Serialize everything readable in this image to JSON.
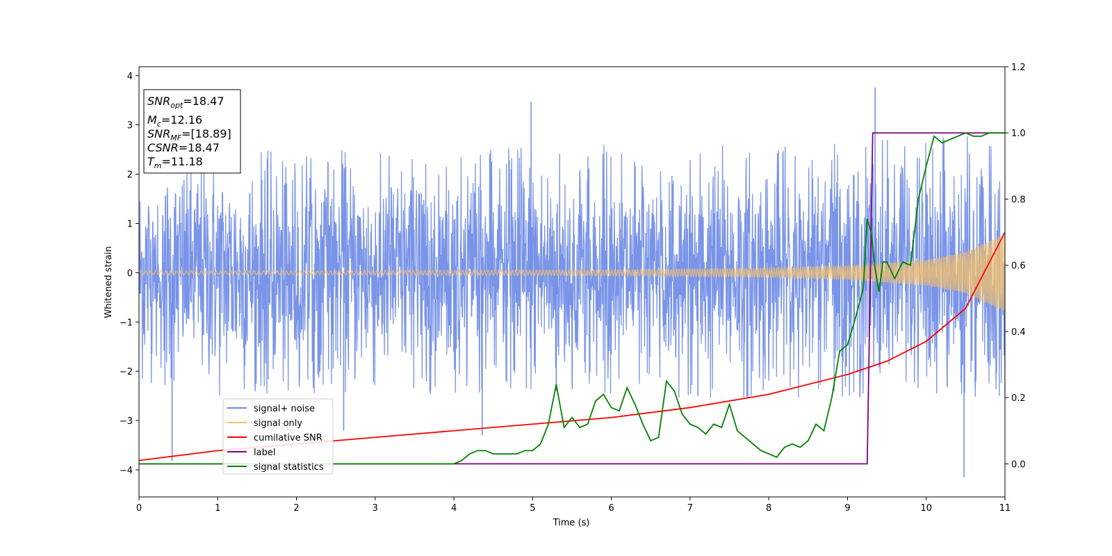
{
  "chart_data": {
    "type": "line",
    "xlabel": "Time (s)",
    "ylabel": "Whitened strain",
    "xlim": [
      0,
      11
    ],
    "ylim": [
      -4.55,
      4.18
    ],
    "y2lim": [
      -0.1,
      1.2
    ],
    "x_ticks": [
      "0",
      "1",
      "2",
      "3",
      "4",
      "5",
      "6",
      "7",
      "8",
      "9",
      "10",
      "11"
    ],
    "y_ticks": [
      "−4",
      "−3",
      "−2",
      "−1",
      "0",
      "1",
      "2",
      "3",
      "4"
    ],
    "y2_ticks": [
      "0.0",
      "0.2",
      "0.4",
      "0.6",
      "0.8",
      "1.0",
      "1.2"
    ],
    "legend_placement": "lower-left",
    "info_box": {
      "snr_opt_sym": "SNR",
      "snr_opt_sub": "opt",
      "snr_opt_val": "=18.47",
      "mc_sym": "M",
      "mc_sub": "c",
      "mc_val": "=12.16",
      "snr_mf_sym": "SNR",
      "snr_mf_sub": "MF",
      "snr_mf_val": "=[18.89]",
      "csnr_sym": "CSNR",
      "csnr_val": "=18.47",
      "tm_sym": "T",
      "tm_sub": "m",
      "tm_val": "=11.18"
    },
    "series": [
      {
        "name": "signal+ noise",
        "axis": "left",
        "color": "#6a88e6",
        "style": "band",
        "x": [
          0,
          1,
          2,
          3,
          4,
          5,
          6,
          7,
          8,
          9,
          10,
          11
        ],
        "upper_typical": [
          2.4,
          2.5,
          2.5,
          2.5,
          2.5,
          2.6,
          2.6,
          2.6,
          2.6,
          2.7,
          2.8,
          2.8
        ],
        "lower_typical": [
          -2.4,
          -2.5,
          -2.5,
          -2.5,
          -2.5,
          -2.6,
          -2.6,
          -2.6,
          -2.6,
          -2.6,
          -2.6,
          -2.6
        ],
        "spikes": [
          {
            "x": 0.42,
            "y": -3.82
          },
          {
            "x": 2.6,
            "y": -3.2
          },
          {
            "x": 4.36,
            "y": -3.3
          },
          {
            "x": 4.98,
            "y": 3.47
          },
          {
            "x": 9.35,
            "y": 3.76
          },
          {
            "x": 10.48,
            "y": -4.15
          },
          {
            "x": 5.3,
            "y": -2.4
          },
          {
            "x": 7.1,
            "y": -2.5
          }
        ]
      },
      {
        "name": "signal only",
        "axis": "left",
        "color": "#f5c06a",
        "style": "chirp",
        "x": [
          0,
          2,
          4,
          6,
          8,
          9,
          10,
          10.5,
          11
        ],
        "amplitude": [
          0.04,
          0.04,
          0.05,
          0.06,
          0.09,
          0.14,
          0.26,
          0.42,
          0.8
        ]
      },
      {
        "name": "cumilative SNR",
        "axis": "right",
        "color": "#ff0000",
        "style": "line",
        "x": [
          0,
          1,
          2,
          3,
          4,
          5,
          6,
          7,
          8,
          9,
          9.5,
          10,
          10.5,
          11
        ],
        "y": [
          0.01,
          0.04,
          0.06,
          0.08,
          0.1,
          0.12,
          0.14,
          0.17,
          0.21,
          0.27,
          0.31,
          0.37,
          0.47,
          0.7
        ]
      },
      {
        "name": "label",
        "axis": "right",
        "color": "#800080",
        "style": "line",
        "x": [
          0,
          9.25,
          9.32,
          11
        ],
        "y": [
          0,
          0,
          1,
          1
        ]
      },
      {
        "name": "signal statistics",
        "axis": "right",
        "color": "#008000",
        "style": "line",
        "x": [
          0,
          1,
          2,
          3,
          4,
          4.1,
          4.2,
          4.3,
          4.4,
          4.5,
          4.6,
          4.7,
          4.8,
          4.9,
          5.0,
          5.1,
          5.2,
          5.3,
          5.4,
          5.5,
          5.6,
          5.7,
          5.8,
          5.9,
          6.0,
          6.1,
          6.2,
          6.3,
          6.4,
          6.5,
          6.6,
          6.7,
          6.8,
          6.9,
          7.0,
          7.1,
          7.2,
          7.3,
          7.4,
          7.5,
          7.6,
          7.7,
          7.8,
          7.9,
          8.0,
          8.1,
          8.2,
          8.3,
          8.4,
          8.5,
          8.6,
          8.7,
          8.8,
          8.9,
          9.0,
          9.1,
          9.2,
          9.25,
          9.3,
          9.35,
          9.4,
          9.45,
          9.5,
          9.6,
          9.7,
          9.8,
          9.9,
          10.0,
          10.1,
          10.2,
          10.3,
          10.4,
          10.5,
          10.6,
          10.7,
          10.8,
          10.9,
          11.0
        ],
        "y": [
          0,
          0,
          0.0,
          0.0,
          0.0,
          0.01,
          0.03,
          0.04,
          0.04,
          0.03,
          0.03,
          0.03,
          0.03,
          0.04,
          0.04,
          0.06,
          0.12,
          0.24,
          0.11,
          0.14,
          0.11,
          0.12,
          0.19,
          0.21,
          0.17,
          0.16,
          0.23,
          0.18,
          0.12,
          0.07,
          0.08,
          0.25,
          0.22,
          0.15,
          0.12,
          0.11,
          0.09,
          0.12,
          0.11,
          0.18,
          0.1,
          0.08,
          0.06,
          0.04,
          0.03,
          0.02,
          0.05,
          0.06,
          0.05,
          0.07,
          0.12,
          0.1,
          0.2,
          0.34,
          0.36,
          0.44,
          0.53,
          0.74,
          0.7,
          0.59,
          0.52,
          0.61,
          0.61,
          0.56,
          0.61,
          0.6,
          0.8,
          0.9,
          0.99,
          0.97,
          0.98,
          0.99,
          1.0,
          0.99,
          0.99,
          1.0,
          1.0,
          1.0
        ]
      }
    ]
  }
}
